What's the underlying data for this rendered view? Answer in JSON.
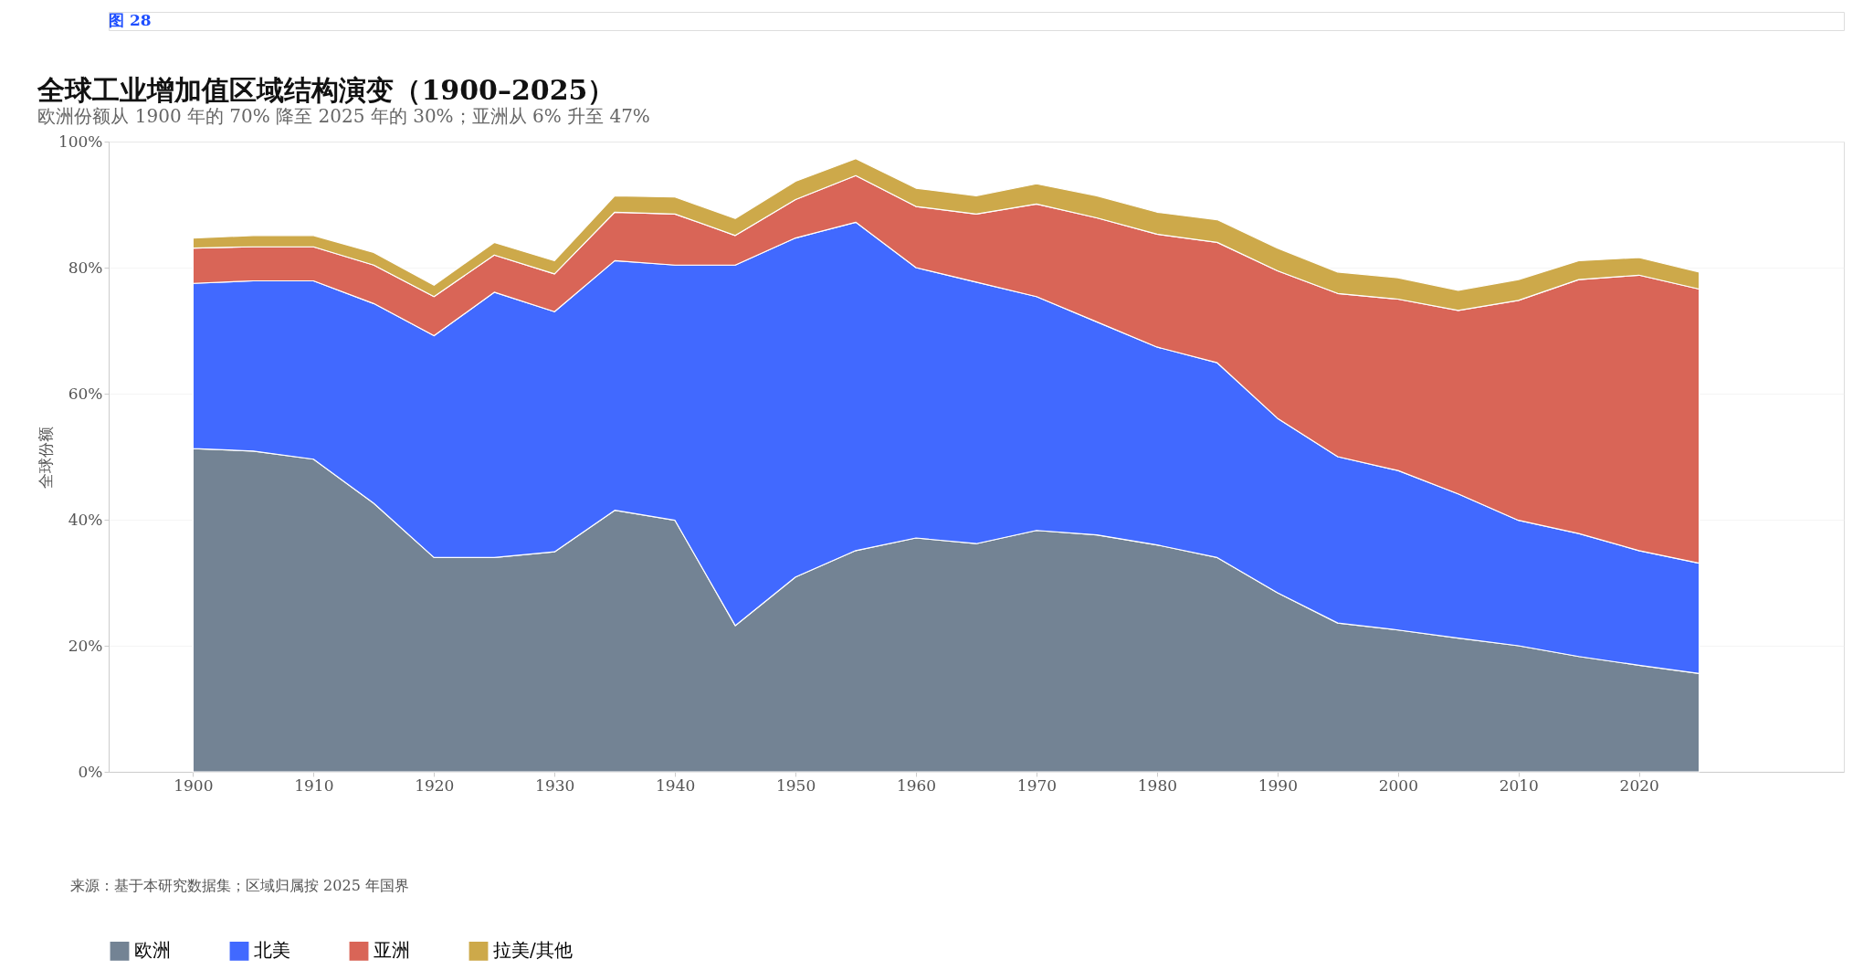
{
  "chart_data": {
    "type": "area",
    "stacked": true,
    "title": "全球工业增加值区域结构演变（1900–2025）",
    "subtitle": "欧洲份额从 1900 年的 70% 降至 2025 年的 30%；亚洲从 6% 升至 47%",
    "ylabel": "全球份额",
    "x": [
      1900,
      1905,
      1910,
      1915,
      1920,
      1925,
      1930,
      1935,
      1940,
      1945,
      1950,
      1955,
      1960,
      1965,
      1970,
      1975,
      1980,
      1985,
      1990,
      1995,
      2000,
      2005,
      2010,
      2015,
      2020,
      2025
    ],
    "series": [
      {
        "name": "欧洲",
        "color": "#738394",
        "values": [
          51.3,
          50.9,
          49.6,
          42.6,
          34.0,
          34.0,
          34.9,
          41.5,
          39.9,
          23.2,
          30.9,
          35.1,
          37.1,
          36.2,
          38.3,
          37.6,
          36.0,
          34.0,
          28.4,
          23.6,
          22.5,
          21.2,
          20.0,
          18.3,
          16.9,
          15.6
        ]
      },
      {
        "name": "北美",
        "color": "#4169ff",
        "values": [
          26.2,
          27.0,
          28.3,
          31.7,
          35.2,
          42.1,
          38.1,
          39.6,
          40.5,
          57.2,
          53.8,
          52.1,
          42.9,
          41.5,
          37.1,
          33.8,
          31.4,
          30.9,
          27.7,
          26.4,
          25.3,
          22.9,
          19.9,
          19.5,
          18.2,
          17.5
        ]
      },
      {
        "name": "亚洲",
        "color": "#d96557",
        "values": [
          5.6,
          5.4,
          5.4,
          6.1,
          6.2,
          5.9,
          6.0,
          7.7,
          8.1,
          4.7,
          6.1,
          7.4,
          9.7,
          10.8,
          14.7,
          16.5,
          17.9,
          19.1,
          23.4,
          25.9,
          27.2,
          29.1,
          34.9,
          40.3,
          43.7,
          43.5
        ]
      },
      {
        "name": "拉美/其他",
        "color": "#cda94a",
        "values": [
          1.6,
          1.8,
          1.8,
          2.0,
          1.8,
          2.0,
          2.1,
          2.6,
          2.7,
          2.7,
          2.9,
          2.7,
          2.9,
          2.9,
          3.2,
          3.5,
          3.5,
          3.6,
          3.6,
          3.4,
          3.4,
          3.2,
          3.3,
          3.0,
          2.8,
          2.7
        ]
      }
    ],
    "xlim": [
      1893,
      2037
    ],
    "xticks": [
      1900,
      1910,
      1920,
      1930,
      1940,
      1950,
      1960,
      1970,
      1980,
      1990,
      2000,
      2010,
      2020
    ],
    "ylim": [
      0,
      100
    ],
    "yticks": [
      {
        "value": 0,
        "label": "0%"
      },
      {
        "value": 20,
        "label": "20%"
      },
      {
        "value": 40,
        "label": "40%"
      },
      {
        "value": 60,
        "label": "60%"
      },
      {
        "value": 80,
        "label": "80%"
      },
      {
        "value": 100,
        "label": "100%"
      }
    ],
    "grid": "y",
    "legend": "bottom",
    "annotations": [
      "图 28",
      "来源：基于本研究数据集；区域归属按 2025 年国界"
    ]
  }
}
